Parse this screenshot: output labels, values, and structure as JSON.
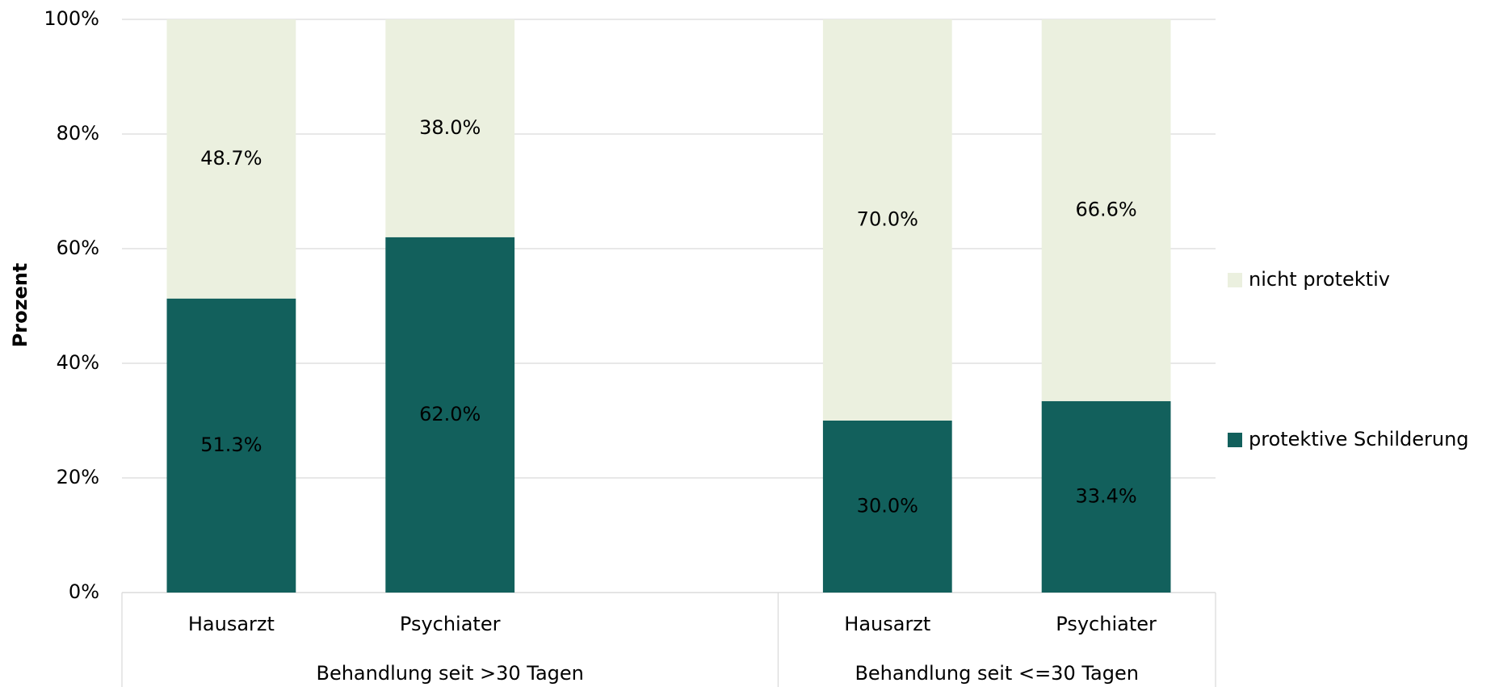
{
  "chart_data": {
    "type": "stacked-bar",
    "y_label": "Prozent",
    "categories": [
      "Hausarzt",
      "Psychiater",
      null,
      "Hausarzt",
      "Psychiater"
    ],
    "groups": [
      "Behandlung seit >30 Tagen",
      "Behandlung seit <=30 Tagen"
    ],
    "series": [
      {
        "name": "protektive Schilderung",
        "color": "#12605c",
        "label_color": "#ffffff",
        "values": [
          51.3,
          62.0,
          null,
          30.0,
          33.4
        ],
        "value_labels": [
          "51.3%",
          "62.0%",
          null,
          "30.0%",
          "33.4%"
        ]
      },
      {
        "name": "nicht protektiv",
        "color": "#ebf0df",
        "label_color": "#000000",
        "values": [
          48.7,
          38.0,
          null,
          70.0,
          66.6
        ],
        "value_labels": [
          "48.7%",
          "38.0%",
          null,
          "70.0%",
          "66.6%"
        ]
      }
    ],
    "ylim": [
      0,
      100
    ],
    "yticks": [
      {
        "value": 0,
        "label": "0%"
      },
      {
        "value": 20,
        "label": "20%"
      },
      {
        "value": 40,
        "label": "40%"
      },
      {
        "value": 60,
        "label": "60%"
      },
      {
        "value": 80,
        "label": "80%"
      },
      {
        "value": 100,
        "label": "100%"
      }
    ],
    "grid": true,
    "legend": "right"
  }
}
